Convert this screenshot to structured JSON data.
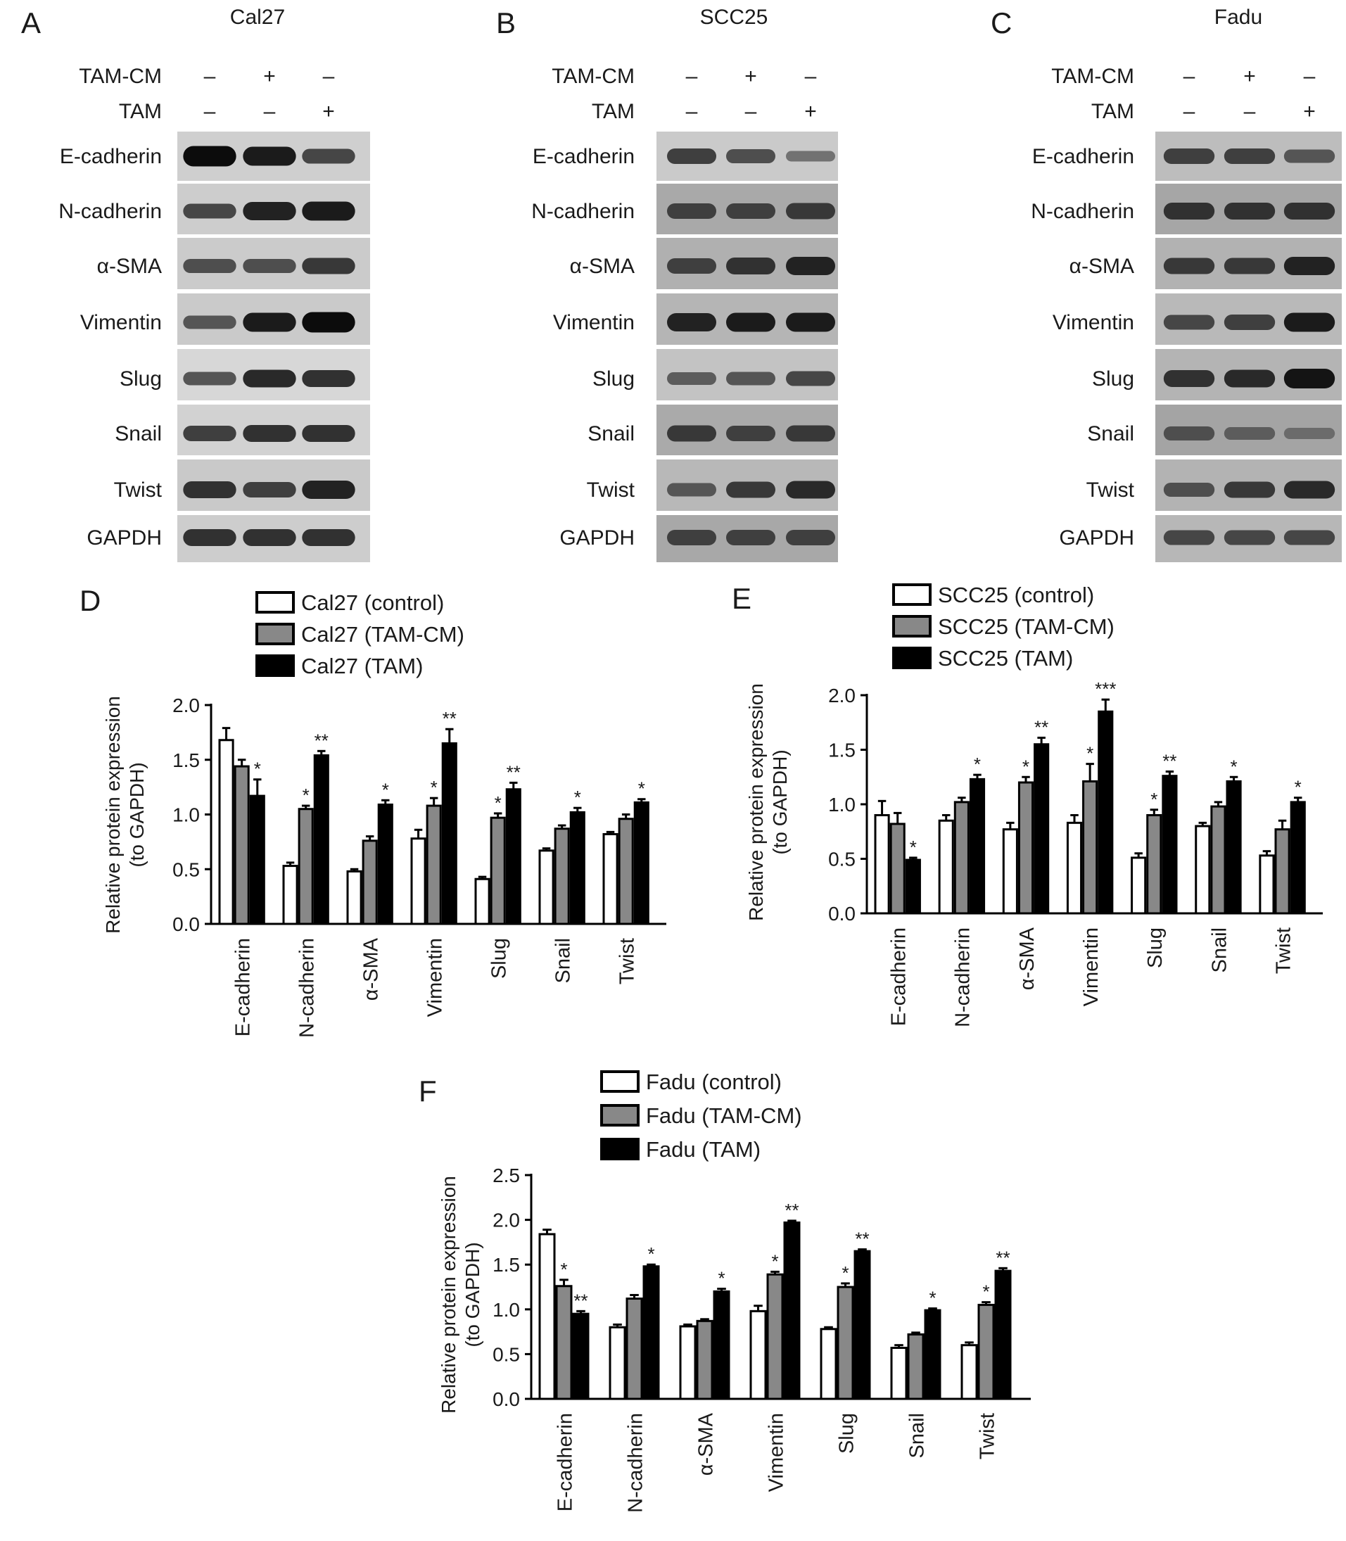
{
  "figure": {
    "blot_panels": [
      {
        "letter": "A",
        "title": "Cal27",
        "treatments": [
          {
            "label": "TAM-CM",
            "lanes": [
              "–",
              "+",
              "–"
            ]
          },
          {
            "label": "TAM",
            "lanes": [
              "–",
              "–",
              "+"
            ]
          }
        ],
        "bands": [
          {
            "label": "E-cadherin",
            "bg": "#cfcfcf",
            "intensities": [
              0.95,
              0.85,
              0.55
            ]
          },
          {
            "label": "N-cadherin",
            "bg": "#cdcdcd",
            "intensities": [
              0.55,
              0.8,
              0.85
            ]
          },
          {
            "label": "α-SMA",
            "bg": "#cbcbcb",
            "intensities": [
              0.5,
              0.5,
              0.65
            ]
          },
          {
            "label": "Vimentin",
            "bg": "#cacaca",
            "intensities": [
              0.45,
              0.85,
              0.95
            ]
          },
          {
            "label": "Slug",
            "bg": "#d7d7d7",
            "intensities": [
              0.45,
              0.75,
              0.7
            ]
          },
          {
            "label": "Snail",
            "bg": "#d2d2d2",
            "intensities": [
              0.6,
              0.7,
              0.7
            ]
          },
          {
            "label": "Twist",
            "bg": "#c9c9c9",
            "intensities": [
              0.7,
              0.6,
              0.8
            ]
          },
          {
            "label": "GAPDH",
            "bg": "#cdcdcd",
            "intensities": [
              0.7,
              0.7,
              0.7
            ]
          }
        ]
      },
      {
        "letter": "B",
        "title": "SCC25",
        "treatments": [
          {
            "label": "TAM-CM",
            "lanes": [
              "–",
              "+",
              "–"
            ]
          },
          {
            "label": "TAM",
            "lanes": [
              "–",
              "–",
              "+"
            ]
          }
        ],
        "bands": [
          {
            "label": "E-cadherin",
            "bg": "#cacaca",
            "intensities": [
              0.6,
              0.5,
              0.25
            ]
          },
          {
            "label": "N-cadherin",
            "bg": "#a9a9a9",
            "intensities": [
              0.6,
              0.6,
              0.65
            ]
          },
          {
            "label": "α-SMA",
            "bg": "#b0b0b0",
            "intensities": [
              0.6,
              0.7,
              0.8
            ]
          },
          {
            "label": "Vimentin",
            "bg": "#b5b5b5",
            "intensities": [
              0.8,
              0.85,
              0.85
            ]
          },
          {
            "label": "Slug",
            "bg": "#c3c3c3",
            "intensities": [
              0.4,
              0.45,
              0.55
            ]
          },
          {
            "label": "Snail",
            "bg": "#aaaaaa",
            "intensities": [
              0.65,
              0.6,
              0.65
            ]
          },
          {
            "label": "Twist",
            "bg": "#b8b8b8",
            "intensities": [
              0.45,
              0.65,
              0.75
            ]
          },
          {
            "label": "GAPDH",
            "bg": "#a8a8a8",
            "intensities": [
              0.6,
              0.6,
              0.6
            ]
          }
        ]
      },
      {
        "letter": "C",
        "title": "Fadu",
        "treatments": [
          {
            "label": "TAM-CM",
            "lanes": [
              "–",
              "+",
              "–"
            ]
          },
          {
            "label": "TAM",
            "lanes": [
              "–",
              "–",
              "+"
            ]
          }
        ],
        "bands": [
          {
            "label": "E-cadherin",
            "bg": "#bdbdbd",
            "intensities": [
              0.6,
              0.6,
              0.45
            ]
          },
          {
            "label": "N-cadherin",
            "bg": "#a6a6a6",
            "intensities": [
              0.7,
              0.7,
              0.7
            ]
          },
          {
            "label": "α-SMA",
            "bg": "#b2b2b2",
            "intensities": [
              0.65,
              0.65,
              0.8
            ]
          },
          {
            "label": "Vimentin",
            "bg": "#b9b9b9",
            "intensities": [
              0.55,
              0.6,
              0.85
            ]
          },
          {
            "label": "Slug",
            "bg": "#b4b4b4",
            "intensities": [
              0.7,
              0.75,
              0.9
            ]
          },
          {
            "label": "Snail",
            "bg": "#a4a4a4",
            "intensities": [
              0.5,
              0.4,
              0.3
            ]
          },
          {
            "label": "Twist",
            "bg": "#b3b3b3",
            "intensities": [
              0.5,
              0.65,
              0.75
            ]
          },
          {
            "label": "GAPDH",
            "bg": "#b7b7b7",
            "intensities": [
              0.55,
              0.55,
              0.55
            ]
          }
        ]
      }
    ]
  },
  "chart_data": [
    {
      "type": "bar",
      "panel": "D",
      "ylabel": "Relative protein expression (to GAPDH)",
      "ylabel_lines": [
        "Relative protein expression",
        "(to GAPDH)"
      ],
      "ylim": [
        0,
        2.0
      ],
      "yticks": [
        "0.0",
        "0.5",
        "1.0",
        "1.5",
        "2.0"
      ],
      "categories": [
        "E-cadherin",
        "N-cadherin",
        "α-SMA",
        "Vimentin",
        "Slug",
        "Snail",
        "Twist"
      ],
      "series": [
        {
          "name": "Cal27 (control)",
          "color": "#ffffff",
          "values": [
            1.68,
            0.53,
            0.48,
            0.78,
            0.41,
            0.67,
            0.82
          ],
          "errors": [
            0.11,
            0.03,
            0.02,
            0.08,
            0.02,
            0.02,
            0.02
          ],
          "sig": [
            "",
            "",
            "",
            "",
            "",
            "",
            ""
          ]
        },
        {
          "name": "Cal27 (TAM-CM)",
          "color": "#888888",
          "values": [
            1.44,
            1.05,
            0.76,
            1.08,
            0.97,
            0.87,
            0.96
          ],
          "errors": [
            0.06,
            0.03,
            0.04,
            0.07,
            0.04,
            0.03,
            0.04
          ],
          "sig": [
            "",
            "*",
            "",
            "*",
            "*",
            "",
            ""
          ]
        },
        {
          "name": "Cal27 (TAM)",
          "color": "#000000",
          "values": [
            1.17,
            1.54,
            1.09,
            1.65,
            1.23,
            1.02,
            1.11
          ],
          "errors": [
            0.15,
            0.04,
            0.04,
            0.13,
            0.06,
            0.04,
            0.03
          ],
          "sig": [
            "*",
            "**",
            "*",
            "**",
            "**",
            "*",
            "*"
          ]
        }
      ],
      "legend": "top-center"
    },
    {
      "type": "bar",
      "panel": "E",
      "ylabel": "Relative protein expression (to GAPDH)",
      "ylabel_lines": [
        "Relative protein expression",
        "(to GAPDH)"
      ],
      "ylim": [
        0,
        2.0
      ],
      "yticks": [
        "0.0",
        "0.5",
        "1.0",
        "1.5",
        "2.0"
      ],
      "categories": [
        "E-cadherin",
        "N-cadherin",
        "α-SMA",
        "Vimentin",
        "Slug",
        "Snail",
        "Twist"
      ],
      "series": [
        {
          "name": "SCC25 (control)",
          "color": "#ffffff",
          "values": [
            0.9,
            0.85,
            0.77,
            0.83,
            0.51,
            0.8,
            0.53
          ],
          "errors": [
            0.13,
            0.05,
            0.06,
            0.07,
            0.04,
            0.03,
            0.04
          ],
          "sig": [
            "",
            "",
            "",
            "",
            "",
            "",
            ""
          ]
        },
        {
          "name": "SCC25 (TAM-CM)",
          "color": "#888888",
          "values": [
            0.82,
            1.02,
            1.2,
            1.21,
            0.9,
            0.98,
            0.77
          ],
          "errors": [
            0.1,
            0.04,
            0.05,
            0.16,
            0.05,
            0.04,
            0.08
          ],
          "sig": [
            "",
            "",
            "*",
            "*",
            "*",
            "",
            ""
          ]
        },
        {
          "name": "SCC25 (TAM)",
          "color": "#000000",
          "values": [
            0.49,
            1.23,
            1.55,
            1.85,
            1.26,
            1.21,
            1.02
          ],
          "errors": [
            0.02,
            0.04,
            0.06,
            0.11,
            0.04,
            0.04,
            0.04
          ],
          "sig": [
            "*",
            "*",
            "**",
            "***",
            "**",
            "*",
            "*"
          ]
        }
      ],
      "legend": "top-center"
    },
    {
      "type": "bar",
      "panel": "F",
      "ylabel": "Relative protein expression (to GAPDH)",
      "ylabel_lines": [
        "Relative protein expression",
        "(to GAPDH)"
      ],
      "ylim": [
        0,
        2.5
      ],
      "yticks": [
        "0.0",
        "0.5",
        "1.0",
        "1.5",
        "2.0",
        "2.5"
      ],
      "categories": [
        "E-cadherin",
        "N-cadherin",
        "α-SMA",
        "Vimentin",
        "Slug",
        "Snail",
        "Twist"
      ],
      "series": [
        {
          "name": "Fadu (control)",
          "color": "#ffffff",
          "values": [
            1.84,
            0.8,
            0.81,
            0.98,
            0.78,
            0.57,
            0.6
          ],
          "errors": [
            0.05,
            0.03,
            0.02,
            0.06,
            0.02,
            0.03,
            0.03
          ],
          "sig": [
            "",
            "",
            "",
            "",
            "",
            "",
            ""
          ]
        },
        {
          "name": "Fadu (TAM-CM)",
          "color": "#888888",
          "values": [
            1.26,
            1.12,
            0.87,
            1.39,
            1.25,
            0.72,
            1.05
          ],
          "errors": [
            0.07,
            0.04,
            0.02,
            0.03,
            0.04,
            0.02,
            0.03
          ],
          "sig": [
            "*",
            "",
            "",
            "*",
            "*",
            "",
            "*"
          ]
        },
        {
          "name": "Fadu (TAM)",
          "color": "#000000",
          "values": [
            0.95,
            1.48,
            1.2,
            1.97,
            1.65,
            0.99,
            1.43
          ],
          "errors": [
            0.03,
            0.02,
            0.03,
            0.02,
            0.02,
            0.02,
            0.03
          ],
          "sig": [
            "**",
            "*",
            "*",
            "**",
            "**",
            "*",
            "**"
          ]
        }
      ],
      "legend": "top-center"
    }
  ]
}
